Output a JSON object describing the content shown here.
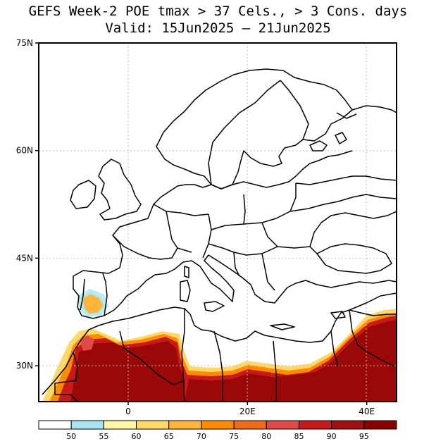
{
  "title": {
    "line1": "GEFS Week-2 POE tmax > 37 Cels., > 3 Cons. days",
    "line2": "Valid: 15Jun2025 – 21Jun2025"
  },
  "map": {
    "lon_range": [
      -15,
      45
    ],
    "lat_range": [
      25,
      75
    ],
    "lat_labels": [
      {
        "lat": 75,
        "text": "75N"
      },
      {
        "lat": 60,
        "text": "60N"
      },
      {
        "lat": 45,
        "text": "45N"
      },
      {
        "lat": 30,
        "text": "30N"
      }
    ],
    "lon_labels": [
      {
        "lon": 0,
        "text": "0"
      },
      {
        "lon": 20,
        "text": "20E"
      },
      {
        "lon": 40,
        "text": "40E"
      }
    ],
    "gridline_color": "#bbbbbb",
    "coast_color": "#000000"
  },
  "colorbar": {
    "levels": [
      "50",
      "55",
      "60",
      "65",
      "70",
      "75",
      "80",
      "85",
      "90",
      "95"
    ],
    "colors": [
      "#ffffff",
      "#a9e5f0",
      "#fff6a8",
      "#ffd86a",
      "#ffb43c",
      "#ff8c00",
      "#f06a1a",
      "#e04a4a",
      "#c81a1a",
      "#a01010",
      "#8a0000"
    ]
  }
}
